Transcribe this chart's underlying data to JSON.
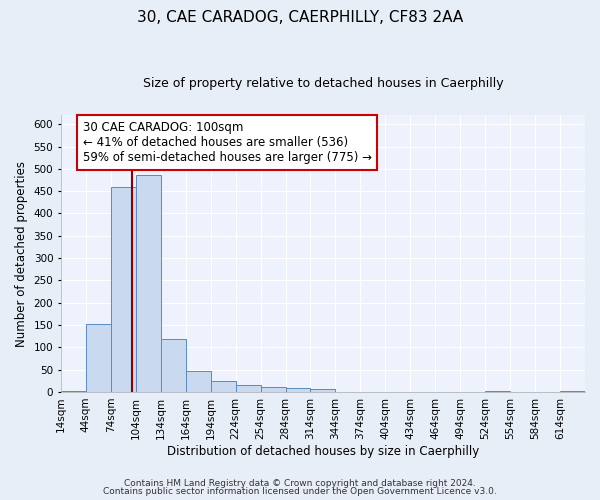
{
  "title": "30, CAE CARADOG, CAERPHILLY, CF83 2AA",
  "subtitle": "Size of property relative to detached houses in Caerphilly",
  "xlabel": "Distribution of detached houses by size in Caerphilly",
  "ylabel": "Number of detached properties",
  "footer_line1": "Contains HM Land Registry data © Crown copyright and database right 2024.",
  "footer_line2": "Contains public sector information licensed under the Open Government Licence v3.0.",
  "bin_edges": [
    14,
    44,
    74,
    104,
    134,
    164,
    194,
    224,
    254,
    284,
    314,
    344,
    374,
    404,
    434,
    464,
    494,
    524,
    554,
    584,
    614,
    644
  ],
  "bin_counts": [
    2,
    153,
    459,
    487,
    118,
    47,
    25,
    15,
    10,
    8,
    7,
    0,
    0,
    0,
    0,
    0,
    0,
    2,
    0,
    0,
    2
  ],
  "bar_color": "#c9d9f0",
  "bar_edge_color": "#5a8abf",
  "vline_x": 100,
  "vline_color": "#8b0000",
  "annotation_title": "30 CAE CARADOG: 100sqm",
  "annotation_line1": "← 41% of detached houses are smaller (536)",
  "annotation_line2": "59% of semi-detached houses are larger (775) →",
  "ylim": [
    0,
    620
  ],
  "xlim": [
    14,
    644
  ],
  "yticks": [
    0,
    50,
    100,
    150,
    200,
    250,
    300,
    350,
    400,
    450,
    500,
    550,
    600
  ],
  "tick_labels": [
    "14sqm",
    "44sqm",
    "74sqm",
    "104sqm",
    "134sqm",
    "164sqm",
    "194sqm",
    "224sqm",
    "254sqm",
    "284sqm",
    "314sqm",
    "344sqm",
    "374sqm",
    "404sqm",
    "434sqm",
    "464sqm",
    "494sqm",
    "524sqm",
    "554sqm",
    "584sqm",
    "614sqm"
  ],
  "bg_color": "#e8eef8",
  "plot_bg_color": "#edf2fc",
  "grid_color": "#ffffff",
  "title_fontsize": 11,
  "subtitle_fontsize": 9,
  "axis_label_fontsize": 8.5,
  "tick_fontsize": 7.5,
  "footer_fontsize": 6.5,
  "annot_fontsize": 8.5,
  "annot_box_edge": "#cc0000"
}
